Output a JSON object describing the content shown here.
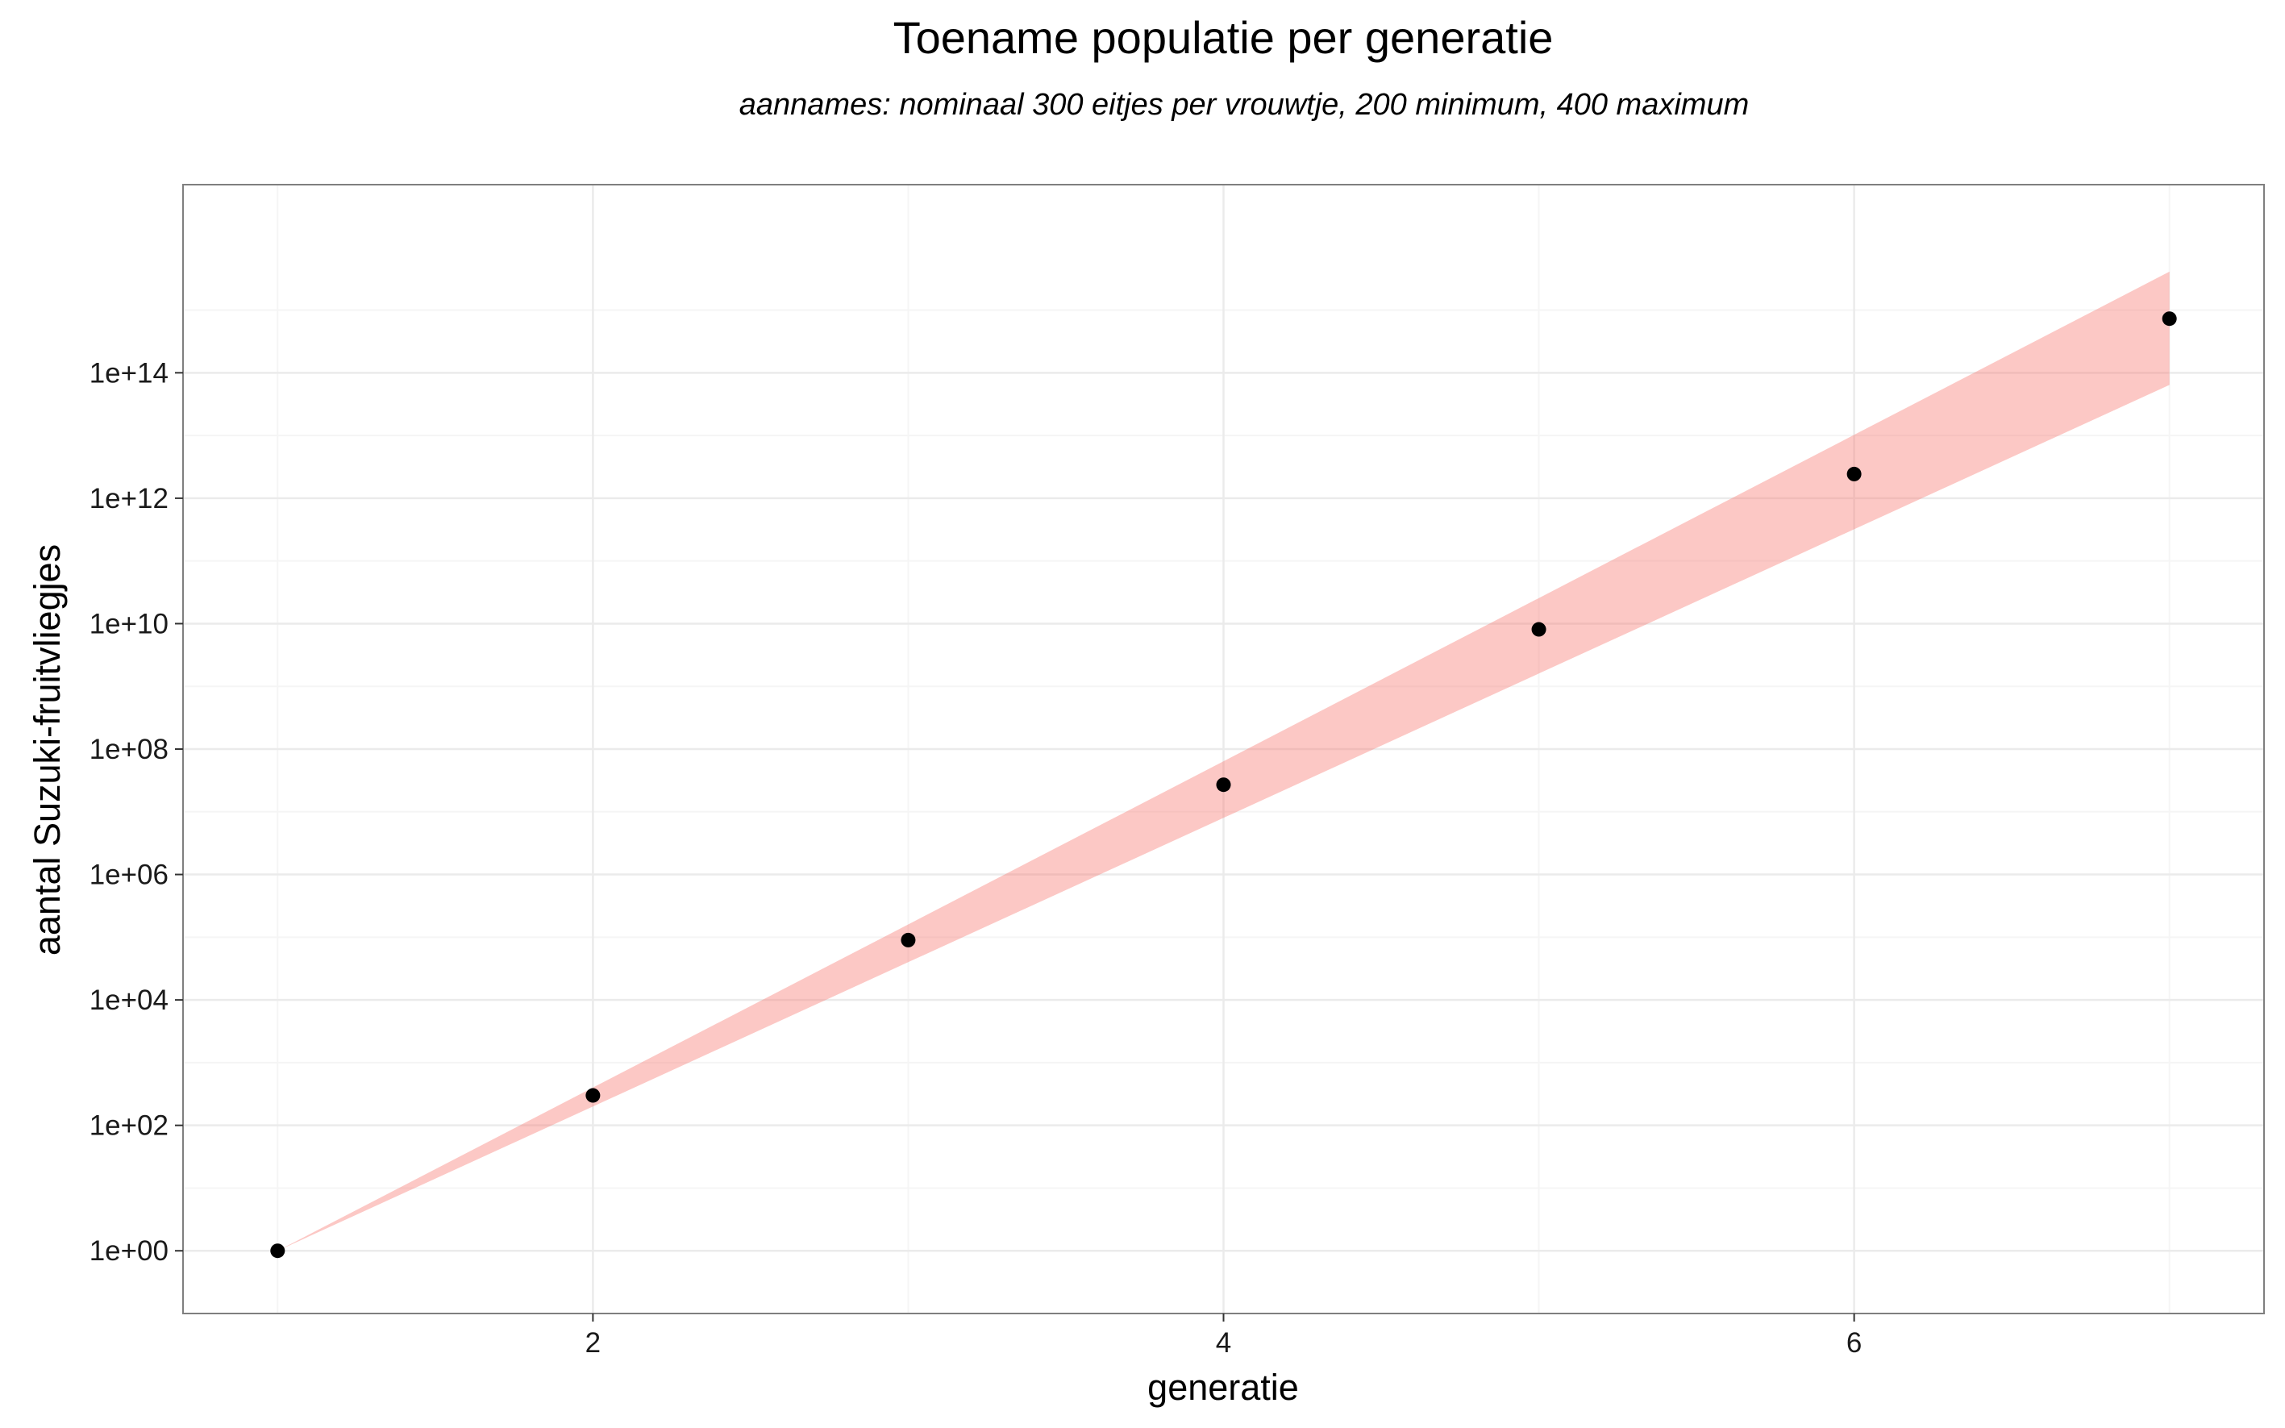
{
  "chart_data": {
    "type": "scatter",
    "title": "Toename populatie per generatie",
    "subtitle": "aannames: nominaal 300 eitjes per vrouwtje, 200 minimum, 400 maximum",
    "xlabel": "generatie",
    "ylabel": "aantal Suzuki-fruitvliegjes",
    "y_scale": "log10",
    "xlim": [
      0.7,
      7.3
    ],
    "ylim": [
      0.1,
      1e+17
    ],
    "x_ticks": [
      2,
      4,
      6
    ],
    "x_tick_labels": [
      "2",
      "4",
      "6"
    ],
    "y_ticks": [
      1,
      100,
      10000,
      1000000,
      100000000,
      10000000000,
      1000000000000,
      100000000000000
    ],
    "y_tick_labels": [
      "1e+00",
      "1e+02",
      "1e+04",
      "1e+06",
      "1e+08",
      "1e+10",
      "1e+12",
      "1e+14"
    ],
    "grid": true,
    "legend": "none",
    "colors": {
      "ribbon": "#F8766D",
      "ribbon_opacity": 0.4,
      "points": "#000000",
      "panel_border": "#7f7f7f",
      "grid_major": "#ebebeb",
      "grid_minor": "#f5f5f5"
    },
    "series": [
      {
        "type": "points",
        "x": [
          1,
          2,
          3,
          4,
          5,
          6,
          7
        ],
        "y": [
          1,
          300,
          90000,
          27000000,
          8100000000,
          2430000000000,
          729000000000000
        ]
      },
      {
        "type": "ribbon",
        "x": [
          1,
          2,
          3,
          4,
          5,
          6,
          7
        ],
        "ymin": [
          1,
          200,
          40000,
          8000000,
          1600000000,
          320000000000,
          64000000000000
        ],
        "ymax": [
          1,
          400,
          160000,
          64000000,
          25600000000,
          10240000000000,
          4096000000000000
        ]
      }
    ]
  }
}
